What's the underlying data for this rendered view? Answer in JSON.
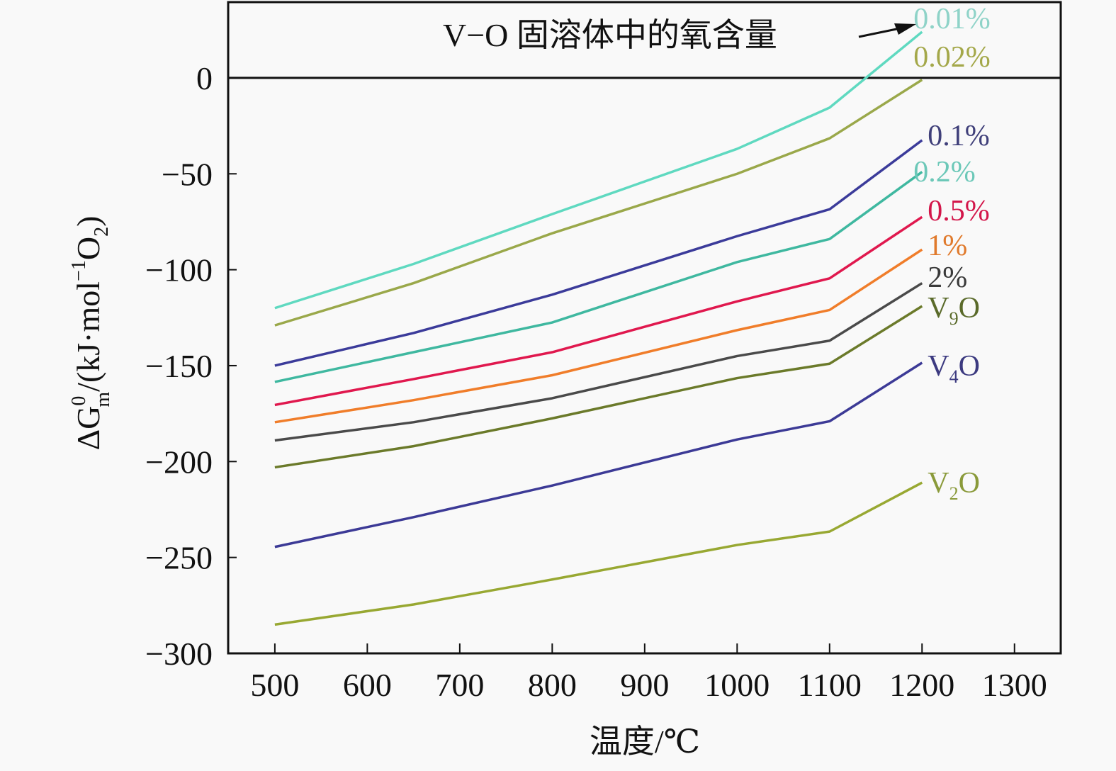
{
  "chart_data": {
    "type": "line",
    "title": "",
    "xlabel": "温度/℃",
    "ylabel": "ΔG",
    "ylabel_sup": "0",
    "ylabel_sub": "m",
    "ylabel_unit_a": "/(kJ·mol",
    "ylabel_unit_sup": "−1",
    "ylabel_unit_b": "O",
    "ylabel_unit_sub": "2",
    "ylabel_unit_c": ")",
    "xlim": [
      449.5,
      1350
    ],
    "ylim": [
      -300,
      39.5
    ],
    "xticks": [
      500,
      600,
      700,
      800,
      900,
      1000,
      1100,
      1200,
      1300
    ],
    "xtick_labels": [
      "500",
      "600",
      "700",
      "800",
      "900",
      "1000",
      "1100",
      "1200",
      "1300"
    ],
    "yticks": [
      0,
      -50,
      -100,
      -150,
      -200,
      -250,
      -300
    ],
    "ytick_labels": [
      "0",
      "−50",
      "−100",
      "−150",
      "−200",
      "−250",
      "−300"
    ],
    "reference_line": 0,
    "grid": false,
    "annotation": "V−O 固溶体中的氧含量",
    "x": [
      500,
      650,
      800,
      1000,
      1100,
      1200
    ],
    "series": [
      {
        "name": "0.01%",
        "label": "0.01%",
        "color": "#5fd9c0",
        "label_color": "#8fd3c8",
        "values": [
          -120,
          -97,
          -71,
          -37,
          -15.5,
          24
        ]
      },
      {
        "name": "0.02%",
        "label": "0.02%",
        "color": "#9aa84a",
        "label_color": "#a4a84a",
        "values": [
          -129,
          -107,
          -81,
          -50,
          -31.5,
          -1
        ]
      },
      {
        "name": "0.1%",
        "label": "0.1%",
        "color": "#3b3b9a",
        "label_color": "#40407a",
        "values": [
          -150,
          -133,
          -113,
          -82.5,
          -68.5,
          -32.5
        ]
      },
      {
        "name": "0.2%",
        "label": "0.2%",
        "color": "#3fb8a0",
        "label_color": "#6cc8b8",
        "values": [
          -158.5,
          -143,
          -127.5,
          -96,
          -84,
          -49
        ]
      },
      {
        "name": "0.5%",
        "label": "0.5%",
        "color": "#e0184e",
        "label_color": "#d3164a",
        "values": [
          -170.5,
          -157,
          -143,
          -116.5,
          -104.5,
          -72.5
        ]
      },
      {
        "name": "1%",
        "label": "1%",
        "color": "#f07d2a",
        "label_color": "#e07a2c",
        "values": [
          -179.5,
          -168,
          -155,
          -131.5,
          -121,
          -89.5
        ]
      },
      {
        "name": "2%",
        "label": "2%",
        "color": "#4a4a4a",
        "label_color": "#3a3a3a",
        "values": [
          -189,
          -179.5,
          -167,
          -145,
          -137,
          -107
        ]
      },
      {
        "name": "V9O",
        "label_main": "V",
        "label_sub": "9",
        "label_end": "O",
        "color": "#6b7a2a",
        "label_color": "#5a6a2a",
        "values": [
          -203,
          -192,
          -177.5,
          -156.5,
          -149,
          -119
        ]
      },
      {
        "name": "V4O",
        "label_main": "V",
        "label_sub": "4",
        "label_end": "O",
        "color": "#3c3a96",
        "label_color": "#3c3a80",
        "values": [
          -244.5,
          -229,
          -212.5,
          -188.5,
          -179,
          -148.5
        ]
      },
      {
        "name": "V2O",
        "label_main": "V",
        "label_sub": "2",
        "label_end": "O",
        "color": "#98a832",
        "label_color": "#8a9a3a",
        "values": [
          -285,
          -274.5,
          -261.5,
          -243.5,
          -236.5,
          -211
        ]
      }
    ]
  }
}
